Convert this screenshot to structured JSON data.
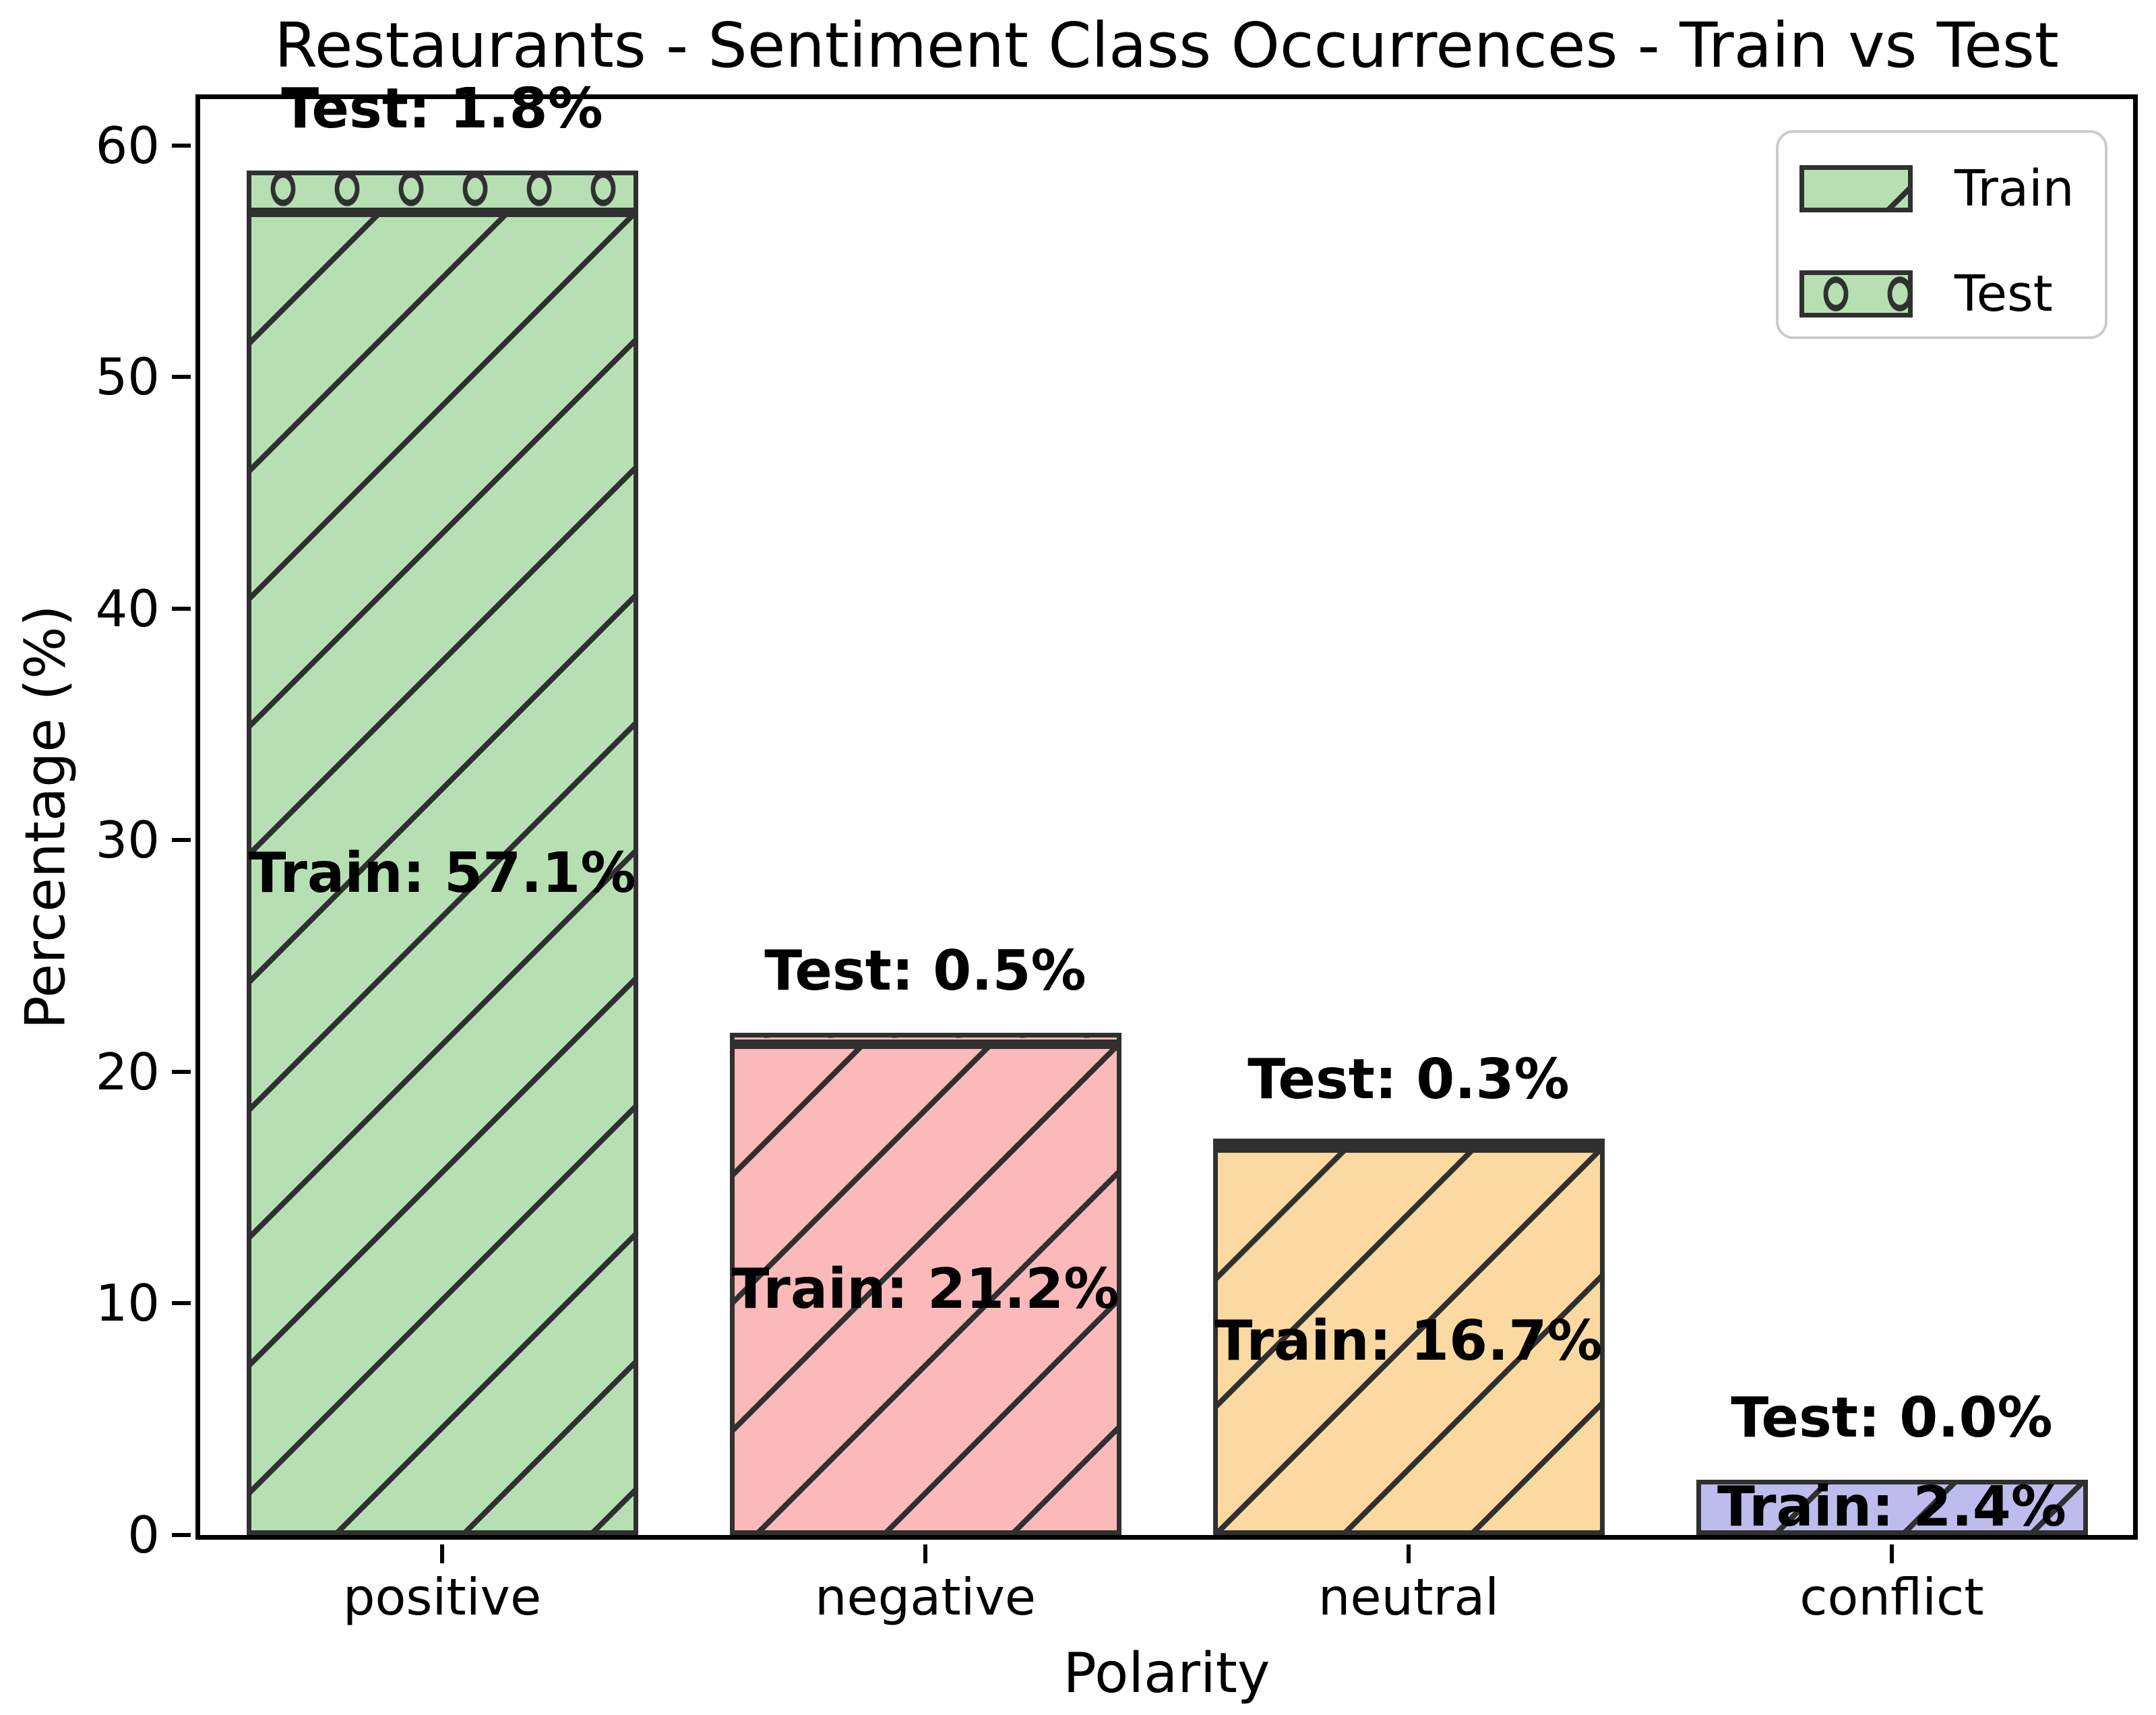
{
  "chart_data": {
    "type": "bar",
    "stacked": true,
    "title": "Restaurants - Sentiment Class Occurrences - Train vs Test",
    "xlabel": "Polarity",
    "ylabel": "Percentage (%)",
    "ylim": [
      0,
      62
    ],
    "yticks": [
      0,
      10,
      20,
      30,
      40,
      50,
      60
    ],
    "grid": false,
    "categories": [
      "positive",
      "negative",
      "neutral",
      "conflict"
    ],
    "series": [
      {
        "name": "Train",
        "hatch": "diagonal",
        "values": [
          57.1,
          21.2,
          16.7,
          2.4
        ]
      },
      {
        "name": "Test",
        "hatch": "circle",
        "values": [
          1.8,
          0.5,
          0.3,
          0.0
        ]
      }
    ],
    "bar_colors": [
      "#b7e0b2",
      "#fcb9b9",
      "#fbd9a0",
      "#bdbcec"
    ],
    "edge_color": "#303030",
    "annotations": {
      "train": [
        "Train: 57.1%",
        "Train: 21.2%",
        "Train: 16.7%",
        "Train: 2.4%"
      ],
      "test": [
        "Test: 1.8%",
        "Test: 0.5%",
        "Test: 0.3%",
        "Test: 0.0%"
      ]
    },
    "legend": {
      "position": "top-right",
      "swatch_color": "#b7e0b2",
      "items": [
        {
          "label": "Train",
          "hatch": "diagonal"
        },
        {
          "label": "Test",
          "hatch": "circle"
        }
      ]
    }
  }
}
